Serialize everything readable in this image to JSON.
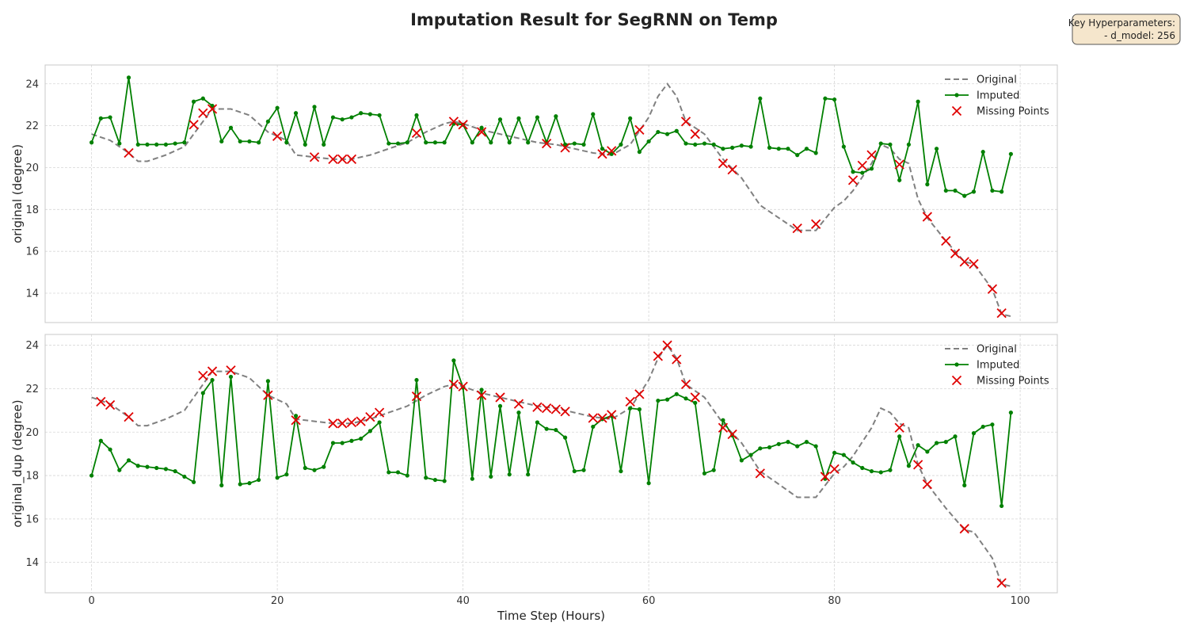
{
  "figure": {
    "title": "Imputation Result for SegRNN on Temp",
    "xlabel": "Time Step (Hours)",
    "hyperparams": {
      "heading": "Key Hyperparameters:",
      "line": "- d_model: 256"
    },
    "colors": {
      "original": "#808080",
      "imputed": "#008000",
      "missing": "#e00000"
    }
  },
  "chart_data": [
    {
      "type": "line",
      "ylabel": "original (degree)",
      "xlim": [
        -5,
        104
      ],
      "ylim": [
        12.6,
        24.9
      ],
      "xticks": [
        0,
        20,
        40,
        60,
        80,
        100
      ],
      "yticks": [
        14,
        16,
        18,
        20,
        22,
        24
      ],
      "grid": true,
      "legend_position": "upper-right",
      "legend": [
        "Original",
        "Imputed",
        "Missing Points"
      ],
      "series": [
        {
          "name": "Original",
          "style": "dashed",
          "x": [
            0,
            2,
            4,
            5,
            6,
            8,
            10,
            12,
            13,
            15,
            17,
            19,
            20,
            21,
            22,
            24,
            26,
            28,
            30,
            32,
            34,
            36,
            38,
            39,
            40,
            42,
            44,
            46,
            48,
            50,
            52,
            54,
            56,
            58,
            60,
            61,
            62,
            63,
            64,
            66,
            68,
            70,
            72,
            74,
            76,
            78,
            80,
            81,
            82,
            84,
            85,
            86,
            87,
            88,
            89,
            90,
            92,
            94,
            95,
            96,
            97,
            98,
            99
          ],
          "y": [
            21.6,
            21.3,
            20.7,
            20.3,
            20.3,
            20.6,
            21.0,
            22.2,
            22.8,
            22.8,
            22.5,
            21.7,
            21.5,
            21.3,
            20.6,
            20.5,
            20.4,
            20.4,
            20.6,
            20.9,
            21.2,
            21.7,
            22.1,
            22.2,
            22.1,
            21.8,
            21.6,
            21.4,
            21.2,
            21.1,
            20.9,
            20.7,
            20.6,
            21.1,
            22.4,
            23.4,
            24.0,
            23.4,
            22.2,
            21.6,
            20.4,
            19.5,
            18.2,
            17.6,
            17.0,
            17.0,
            18.1,
            18.4,
            18.9,
            20.2,
            21.1,
            20.9,
            20.4,
            20.2,
            18.5,
            17.6,
            16.5,
            15.5,
            15.4,
            14.8,
            14.2,
            13.0,
            12.9
          ]
        },
        {
          "name": "Imputed",
          "style": "solid-marker",
          "x": [
            0,
            1,
            2,
            3,
            4,
            5,
            6,
            7,
            8,
            9,
            10,
            11,
            12,
            13,
            14,
            15,
            16,
            17,
            18,
            19,
            20,
            21,
            22,
            23,
            24,
            25,
            26,
            27,
            28,
            29,
            30,
            31,
            32,
            33,
            34,
            35,
            36,
            37,
            38,
            39,
            40,
            41,
            42,
            43,
            44,
            45,
            46,
            47,
            48,
            49,
            50,
            51,
            52,
            53,
            54,
            55,
            56,
            57,
            58,
            59,
            60,
            61,
            62,
            63,
            64,
            65,
            66,
            67,
            68,
            69,
            70,
            71,
            72,
            73,
            74,
            75,
            76,
            77,
            78,
            79,
            80,
            81,
            82,
            83,
            84,
            85,
            86,
            87,
            88,
            89,
            90,
            91,
            92,
            93,
            94,
            95,
            96,
            97,
            98,
            99
          ],
          "y": [
            21.2,
            22.35,
            22.4,
            21.15,
            24.3,
            21.1,
            21.1,
            21.1,
            21.1,
            21.15,
            21.2,
            23.15,
            23.3,
            22.95,
            21.25,
            21.9,
            21.25,
            21.25,
            21.2,
            22.2,
            22.85,
            21.2,
            22.6,
            21.1,
            22.9,
            21.1,
            22.4,
            22.3,
            22.4,
            22.6,
            22.55,
            22.5,
            21.15,
            21.15,
            21.2,
            22.5,
            21.2,
            21.2,
            21.2,
            22.1,
            22.05,
            21.2,
            21.9,
            21.2,
            22.3,
            21.2,
            22.35,
            21.2,
            22.4,
            21.2,
            22.45,
            21.1,
            21.15,
            21.1,
            22.55,
            20.9,
            20.65,
            21.1,
            22.35,
            20.75,
            21.25,
            21.7,
            21.6,
            21.75,
            21.15,
            21.1,
            21.15,
            21.1,
            20.9,
            20.95,
            21.05,
            21.0,
            23.3,
            20.95,
            20.9,
            20.9,
            20.6,
            20.9,
            20.7,
            23.3,
            23.25,
            21.0,
            19.8,
            19.75,
            19.95,
            21.15,
            21.1,
            19.4,
            21.1,
            23.15,
            19.2,
            20.9,
            18.9,
            18.9,
            18.65,
            18.85,
            20.75,
            18.9,
            18.85,
            20.65
          ]
        },
        {
          "name": "Missing Points",
          "style": "marker-x",
          "x": [
            4,
            11,
            12,
            13,
            20,
            24,
            26,
            27,
            28,
            35,
            39,
            40,
            42,
            49,
            51,
            55,
            56,
            59,
            64,
            65,
            68,
            69,
            76,
            78,
            82,
            83,
            84,
            87,
            90,
            92,
            93,
            94,
            95,
            97,
            98
          ],
          "y": [
            20.7,
            22.05,
            22.6,
            22.8,
            21.5,
            20.5,
            20.4,
            20.4,
            20.4,
            21.65,
            22.2,
            22.05,
            21.7,
            21.15,
            20.95,
            20.65,
            20.8,
            21.8,
            22.2,
            21.6,
            20.2,
            19.9,
            17.1,
            17.3,
            19.4,
            20.1,
            20.6,
            20.15,
            17.65,
            16.5,
            15.9,
            15.5,
            15.4,
            14.2,
            13.05
          ]
        }
      ]
    },
    {
      "type": "line",
      "ylabel": "original_dup (degree)",
      "xlim": [
        -5,
        104
      ],
      "ylim": [
        12.6,
        24.5
      ],
      "xticks": [
        0,
        20,
        40,
        60,
        80,
        100
      ],
      "yticks": [
        14,
        16,
        18,
        20,
        22,
        24
      ],
      "grid": true,
      "legend_position": "upper-right",
      "legend": [
        "Original",
        "Imputed",
        "Missing Points"
      ],
      "series": [
        {
          "name": "Original",
          "style": "dashed",
          "x": [
            0,
            2,
            4,
            5,
            6,
            8,
            10,
            12,
            13,
            15,
            17,
            19,
            20,
            21,
            22,
            24,
            26,
            28,
            30,
            32,
            34,
            36,
            38,
            39,
            40,
            42,
            44,
            46,
            48,
            50,
            52,
            54,
            56,
            58,
            60,
            61,
            62,
            63,
            64,
            66,
            68,
            70,
            72,
            74,
            76,
            78,
            80,
            81,
            82,
            84,
            85,
            86,
            87,
            88,
            89,
            90,
            92,
            94,
            95,
            96,
            97,
            98,
            99
          ],
          "y": [
            21.6,
            21.3,
            20.7,
            20.3,
            20.3,
            20.6,
            21.0,
            22.2,
            22.8,
            22.8,
            22.5,
            21.7,
            21.5,
            21.3,
            20.6,
            20.5,
            20.4,
            20.4,
            20.6,
            20.9,
            21.2,
            21.7,
            22.1,
            22.2,
            22.1,
            21.8,
            21.6,
            21.4,
            21.2,
            21.1,
            20.9,
            20.7,
            20.6,
            21.1,
            22.4,
            23.4,
            24.0,
            23.4,
            22.2,
            21.6,
            20.4,
            19.5,
            18.2,
            17.6,
            17.0,
            17.0,
            18.1,
            18.4,
            18.9,
            20.2,
            21.1,
            20.9,
            20.4,
            20.2,
            18.5,
            17.6,
            16.5,
            15.5,
            15.4,
            14.8,
            14.2,
            13.0,
            12.9
          ]
        },
        {
          "name": "Imputed",
          "style": "solid-marker",
          "x": [
            0,
            1,
            2,
            3,
            4,
            5,
            6,
            7,
            8,
            9,
            10,
            11,
            12,
            13,
            14,
            15,
            16,
            17,
            18,
            19,
            20,
            21,
            22,
            23,
            24,
            25,
            26,
            27,
            28,
            29,
            30,
            31,
            32,
            33,
            34,
            35,
            36,
            37,
            38,
            39,
            40,
            41,
            42,
            43,
            44,
            45,
            46,
            47,
            48,
            49,
            50,
            51,
            52,
            53,
            54,
            55,
            56,
            57,
            58,
            59,
            60,
            61,
            62,
            63,
            64,
            65,
            66,
            67,
            68,
            69,
            70,
            71,
            72,
            73,
            74,
            75,
            76,
            77,
            78,
            79,
            80,
            81,
            82,
            83,
            84,
            85,
            86,
            87,
            88,
            89,
            90,
            91,
            92,
            93,
            94,
            95,
            96,
            97,
            98,
            99
          ],
          "y": [
            18.0,
            19.6,
            19.2,
            18.25,
            18.7,
            18.45,
            18.4,
            18.35,
            18.3,
            18.2,
            17.95,
            17.7,
            21.8,
            22.4,
            17.55,
            22.55,
            17.6,
            17.65,
            17.8,
            22.35,
            17.9,
            18.05,
            20.75,
            18.35,
            18.25,
            18.4,
            19.5,
            19.5,
            19.6,
            19.7,
            20.05,
            20.45,
            18.15,
            18.15,
            18.0,
            22.4,
            17.9,
            17.8,
            17.75,
            23.3,
            22.05,
            17.85,
            21.95,
            17.95,
            21.2,
            18.05,
            20.9,
            18.05,
            20.45,
            20.15,
            20.1,
            19.75,
            18.2,
            18.25,
            20.25,
            20.6,
            20.75,
            18.2,
            21.1,
            21.05,
            17.65,
            21.45,
            21.5,
            21.75,
            21.55,
            21.35,
            18.1,
            18.25,
            20.55,
            19.85,
            18.7,
            18.95,
            19.25,
            19.3,
            19.45,
            19.55,
            19.35,
            19.55,
            19.35,
            17.85,
            19.05,
            18.95,
            18.6,
            18.35,
            18.2,
            18.15,
            18.25,
            19.8,
            18.45,
            19.4,
            19.1,
            19.5,
            19.55,
            19.8,
            17.55,
            19.95,
            20.25,
            20.35,
            16.6,
            20.9
          ]
        },
        {
          "name": "Missing Points",
          "style": "marker-x",
          "x": [
            1,
            2,
            4,
            12,
            13,
            15,
            19,
            22,
            26,
            27,
            28,
            29,
            30,
            31,
            35,
            39,
            40,
            42,
            44,
            46,
            48,
            49,
            50,
            51,
            54,
            55,
            56,
            58,
            59,
            61,
            62,
            63,
            64,
            65,
            68,
            69,
            72,
            79,
            80,
            87,
            89,
            90,
            94,
            98
          ],
          "y": [
            21.4,
            21.25,
            20.7,
            22.6,
            22.8,
            22.85,
            21.7,
            20.55,
            20.4,
            20.4,
            20.45,
            20.5,
            20.7,
            20.9,
            21.65,
            22.2,
            22.1,
            21.7,
            21.6,
            21.3,
            21.15,
            21.1,
            21.05,
            20.95,
            20.65,
            20.65,
            20.8,
            21.4,
            21.75,
            23.5,
            24.0,
            23.35,
            22.2,
            21.6,
            20.2,
            19.9,
            18.1,
            17.95,
            18.3,
            20.2,
            18.5,
            17.6,
            15.55,
            13.05
          ]
        }
      ]
    }
  ]
}
